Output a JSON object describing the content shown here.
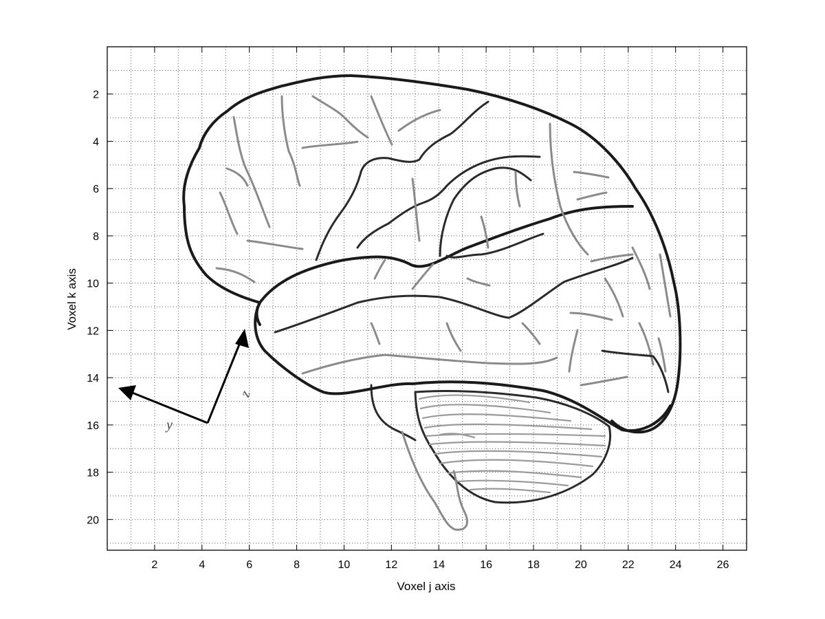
{
  "chart_data": {
    "type": "scatter",
    "title": "",
    "xlabel": "Voxel j axis",
    "ylabel": "Voxel k axis",
    "xlim": [
      0,
      27
    ],
    "ylim": [
      21.3,
      0
    ],
    "y_reversed": true,
    "grid": true,
    "xticks": [
      2,
      4,
      6,
      8,
      10,
      12,
      14,
      16,
      18,
      20,
      22,
      24,
      26
    ],
    "yticks": [
      2,
      4,
      6,
      8,
      10,
      12,
      14,
      16,
      18,
      20
    ],
    "series": []
  },
  "overlay": {
    "coordinate_axes_labels": {
      "y": "y",
      "z": "z"
    },
    "colors": {
      "outline": "#1a1a1a",
      "sulci": "#8a8a8a",
      "grid": "#555555"
    }
  }
}
